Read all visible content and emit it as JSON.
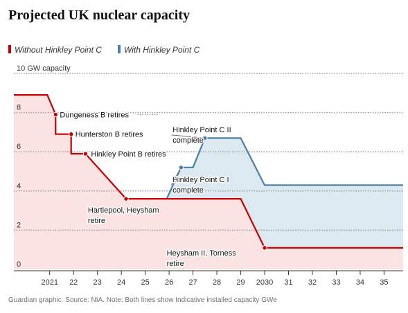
{
  "title": "Projected UK nuclear capacity",
  "legend": [
    {
      "label": "Without Hinkley Point C",
      "color": "#c70000"
    },
    {
      "label": "With Hinkley Point C",
      "color": "#4a7fa5"
    }
  ],
  "source": "Guardian graphic. Source: NIA. Note: Both lines show Indicative installed capacity GWe",
  "chart_data": {
    "type": "area",
    "ylim": [
      0,
      10
    ],
    "xlim": [
      2019.5,
      2035.8
    ],
    "y_ticks": [
      {
        "value": 0,
        "label": "0"
      },
      {
        "value": 2,
        "label": "2"
      },
      {
        "value": 4,
        "label": "4"
      },
      {
        "value": 6,
        "label": "6"
      },
      {
        "value": 8,
        "label": "8"
      },
      {
        "value": 10,
        "label": "10 GW capacity"
      }
    ],
    "x_ticks": [
      {
        "value": 2021,
        "label": "2021"
      },
      {
        "value": 2022,
        "label": "22"
      },
      {
        "value": 2023,
        "label": "23"
      },
      {
        "value": 2024,
        "label": "24"
      },
      {
        "value": 2025,
        "label": "25"
      },
      {
        "value": 2026,
        "label": "26"
      },
      {
        "value": 2027,
        "label": "27"
      },
      {
        "value": 2028,
        "label": "28"
      },
      {
        "value": 2029,
        "label": "29"
      },
      {
        "value": 2030,
        "label": "2030"
      },
      {
        "value": 2031,
        "label": "31"
      },
      {
        "value": 2032,
        "label": "32"
      },
      {
        "value": 2033,
        "label": "33"
      },
      {
        "value": 2034,
        "label": "34"
      },
      {
        "value": 2035,
        "label": "35"
      }
    ],
    "grid": true,
    "legend_position": "top-left",
    "series": [
      {
        "name": "Without Hinkley Point C",
        "color": "#c70000",
        "fill": "#fbe3e3",
        "points": [
          [
            2019.5,
            8.9
          ],
          [
            2020.9,
            8.9
          ],
          [
            2021.25,
            7.9
          ],
          [
            2021.25,
            6.9
          ],
          [
            2021.9,
            6.9
          ],
          [
            2021.9,
            5.9
          ],
          [
            2022.5,
            5.9
          ],
          [
            2024.2,
            3.6
          ],
          [
            2028.8,
            3.6
          ],
          [
            2029,
            3.6
          ],
          [
            2030,
            1.1
          ],
          [
            2035.8,
            1.1
          ]
        ]
      },
      {
        "name": "With Hinkley Point C",
        "color": "#4a7fa5",
        "fill": "#dde9f1",
        "points": [
          [
            2025.9,
            3.6
          ],
          [
            2026.5,
            5.2
          ],
          [
            2027,
            5.2
          ],
          [
            2027.5,
            6.7
          ],
          [
            2029,
            6.7
          ],
          [
            2030,
            4.3
          ],
          [
            2035.8,
            4.3
          ]
        ]
      }
    ],
    "annotations": [
      {
        "lines": [
          "Dungeness B retires"
        ],
        "x": 2021.25,
        "y": 7.9,
        "color": "#c70000",
        "leader_to": 2025.3
      },
      {
        "lines": [
          "Hunterston B retires"
        ],
        "x": 2021.9,
        "y": 6.9,
        "color": "#c70000",
        "leader_to": null
      },
      {
        "lines": [
          "Hinkley Point B retires"
        ],
        "x": 2022.5,
        "y": 5.9,
        "color": "#c70000",
        "leader_to": null
      },
      {
        "lines": [
          "Hartlepool, Heysham",
          "retire"
        ],
        "x": 2024.2,
        "y": 3.6,
        "color": "#c70000",
        "leader_to": null
      },
      {
        "lines": [
          "Hinkley Point C II",
          "complete"
        ],
        "x": 2027.5,
        "y": 6.7,
        "color": "#4a7fa5",
        "leader_to": null
      },
      {
        "lines": [
          "Hinkley Point C I",
          "complete"
        ],
        "x": 2026.5,
        "y": 5.2,
        "color": "#4a7fa5",
        "leader_to": null
      },
      {
        "lines": [
          "Heysham II, Torness",
          "retire"
        ],
        "x": 2030,
        "y": 1.1,
        "color": "#c70000",
        "leader_to": null
      }
    ]
  }
}
